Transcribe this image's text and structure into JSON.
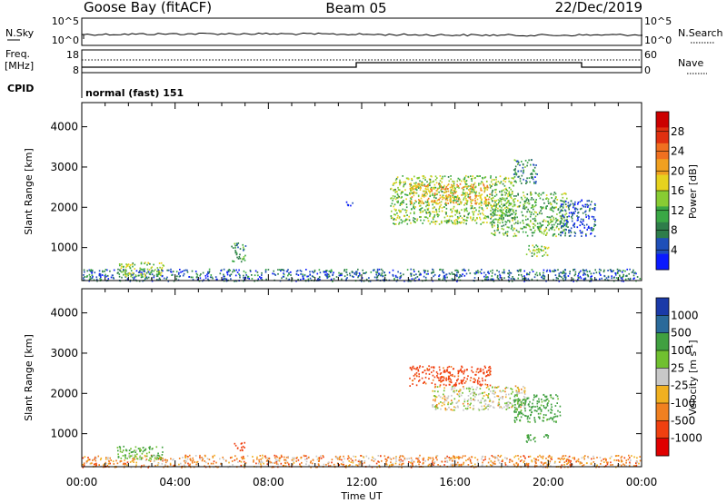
{
  "header": {
    "station": "Goose Bay (fitACF)",
    "beam": "Beam 05",
    "date": "22/Dec/2019"
  },
  "strip_noise": {
    "left_label": "N.Sky",
    "right_label": "N.Search",
    "left_ticks": [
      "10^5",
      "10^0"
    ],
    "right_ticks": [
      "10^5",
      "10^0"
    ]
  },
  "strip_freq": {
    "left_label_1": "Freq.",
    "left_label_2": "[MHz]",
    "right_label": "Nave",
    "left_ticks": [
      "18",
      "8"
    ],
    "right_ticks": [
      "60",
      "0"
    ]
  },
  "cpid": {
    "label": "CPID",
    "text": "normal (fast) 151"
  },
  "colors": {
    "power_scale": [
      "#0a1aff",
      "#1f4fb8",
      "#2e7d4a",
      "#3aa845",
      "#88cc33",
      "#e6d21e",
      "#f0a020",
      "#f07020",
      "#e03010",
      "#cc0000"
    ],
    "velocity_scale": [
      "#e00000",
      "#f04010",
      "#f08020",
      "#f0b020",
      "#c8c8c8",
      "#70c030",
      "#40a040",
      "#2a6a9a",
      "#1a3aa8"
    ]
  },
  "chart_data": [
    {
      "type": "heatmap",
      "title": "",
      "xlabel": "Time UT",
      "ylabel": "Slant Range [km]",
      "xlim": [
        "00:00",
        "24:00"
      ],
      "ylim": [
        180,
        4600
      ],
      "x_ticks": [
        "00:00",
        "04:00",
        "08:00",
        "12:00",
        "16:00",
        "20:00",
        "00:00"
      ],
      "y_ticks": [
        "1000",
        "2000",
        "3000",
        "4000"
      ],
      "colorbar_label": "Power [dB]",
      "colorbar_ticks": [
        "4",
        "8",
        "12",
        "16",
        "20",
        "24",
        "28"
      ],
      "color_range": [
        0,
        32
      ],
      "regions": [
        {
          "t_start": 0.0,
          "t_end": 24.0,
          "r_start": 180,
          "r_end": 480,
          "level": 6
        },
        {
          "t_start": 1.5,
          "t_end": 3.5,
          "r_start": 300,
          "r_end": 650,
          "level": 14
        },
        {
          "t_start": 6.4,
          "t_end": 7.0,
          "r_start": 650,
          "r_end": 1150,
          "level": 10
        },
        {
          "t_start": 11.3,
          "t_end": 11.6,
          "r_start": 2050,
          "r_end": 2200,
          "level": 6
        },
        {
          "t_start": 13.2,
          "t_end": 18.5,
          "r_start": 1600,
          "r_end": 2800,
          "level": 14
        },
        {
          "t_start": 14.0,
          "t_end": 17.5,
          "r_start": 2100,
          "r_end": 2600,
          "level": 20
        },
        {
          "t_start": 17.5,
          "t_end": 20.8,
          "r_start": 1300,
          "r_end": 2400,
          "level": 12
        },
        {
          "t_start": 18.5,
          "t_end": 19.5,
          "r_start": 2600,
          "r_end": 3200,
          "level": 8
        },
        {
          "t_start": 19.0,
          "t_end": 20.0,
          "r_start": 800,
          "r_end": 1100,
          "level": 14
        },
        {
          "t_start": 20.5,
          "t_end": 22.0,
          "r_start": 1300,
          "r_end": 2200,
          "level": 5
        }
      ]
    },
    {
      "type": "heatmap",
      "title": "",
      "xlabel": "Time UT",
      "ylabel": "Slant Range [km]",
      "xlim": [
        "00:00",
        "24:00"
      ],
      "ylim": [
        180,
        4600
      ],
      "x_ticks": [
        "00:00",
        "04:00",
        "08:00",
        "12:00",
        "16:00",
        "20:00",
        "00:00"
      ],
      "y_ticks": [
        "1000",
        "2000",
        "3000",
        "4000"
      ],
      "colorbar_label": "Velocity [m s^-1]",
      "colorbar_ticks": [
        "1000",
        "500",
        "100",
        "25",
        "-25",
        "-100",
        "-500",
        "-1000"
      ],
      "regions": [
        {
          "t_start": 0.0,
          "t_end": 24.0,
          "r_start": 180,
          "r_end": 480,
          "velocity": -60
        },
        {
          "t_start": 1.5,
          "t_end": 3.5,
          "r_start": 350,
          "r_end": 700,
          "velocity": 80
        },
        {
          "t_start": 6.5,
          "t_end": 7.0,
          "r_start": 600,
          "r_end": 800,
          "velocity": -300
        },
        {
          "t_start": 14.0,
          "t_end": 17.5,
          "r_start": 2200,
          "r_end": 2700,
          "velocity": -150
        },
        {
          "t_start": 15.0,
          "t_end": 19.0,
          "r_start": 1600,
          "r_end": 2200,
          "velocity": 0
        },
        {
          "t_start": 18.5,
          "t_end": 20.5,
          "r_start": 1300,
          "r_end": 2000,
          "velocity": 150
        },
        {
          "t_start": 19.0,
          "t_end": 20.0,
          "r_start": 800,
          "r_end": 1000,
          "velocity": 150
        }
      ]
    }
  ]
}
